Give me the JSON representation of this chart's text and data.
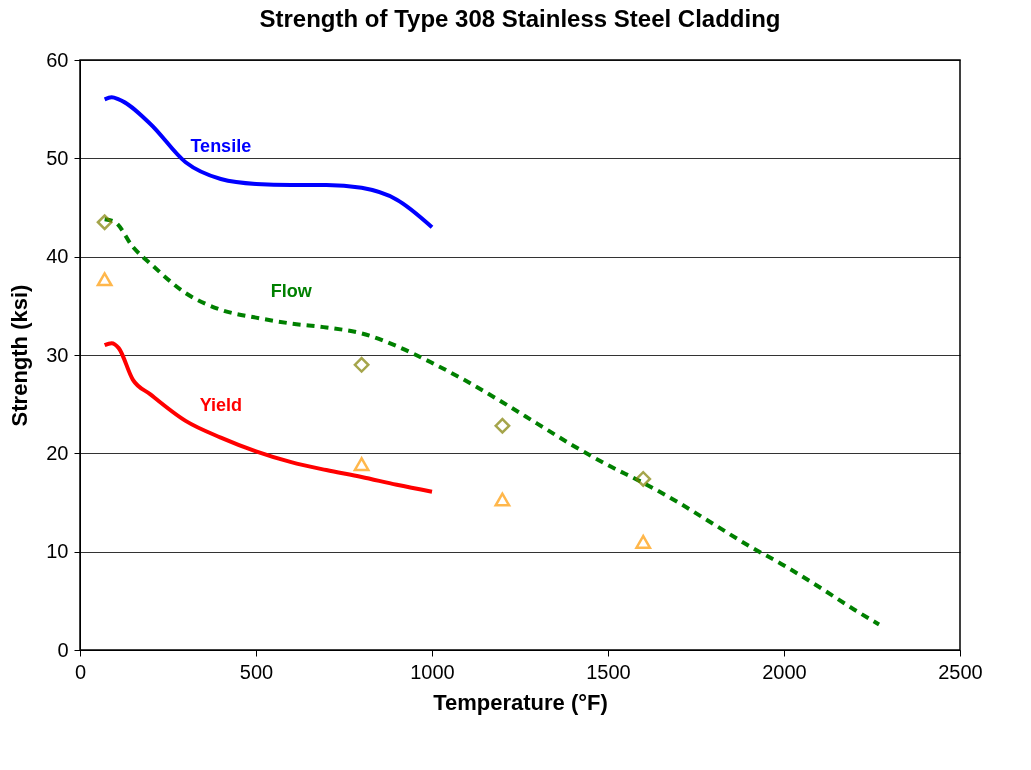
{
  "chart_data": {
    "type": "line",
    "title": "Strength of Type 308 Stainless Steel Cladding",
    "xlabel": "Temperature (°F)",
    "ylabel": "Strength (ksi)",
    "xlim": [
      0,
      2500
    ],
    "xticks": [
      0,
      500,
      1000,
      1500,
      2000,
      2500
    ],
    "ylim": [
      0,
      60
    ],
    "yticks": [
      0,
      10,
      20,
      30,
      40,
      50,
      60
    ],
    "grid": "y",
    "marker": "none",
    "series": [
      {
        "name": "Tensile",
        "color": "#0000ff",
        "line_style": "solid",
        "x": [
          70,
          90,
          110,
          200,
          300,
          400,
          500,
          600,
          700,
          800,
          900,
          1000
        ],
        "values": [
          56,
          56.2,
          56,
          53.5,
          49.6,
          47.9,
          47.4,
          47.3,
          47.3,
          47,
          45.8,
          43
        ]
      },
      {
        "name": "Flow",
        "color": "#008000",
        "line_style": "dashed",
        "x": [
          70,
          100,
          150,
          200,
          300,
          400,
          500,
          600,
          700,
          800,
          900,
          1000,
          1100,
          1200,
          1300,
          1400,
          1500,
          1600,
          1700,
          1800,
          1900,
          2000,
          2100,
          2200,
          2270
        ],
        "values": [
          43.8,
          43.5,
          41,
          39.3,
          36.3,
          34.6,
          33.8,
          33.2,
          32.8,
          32.2,
          30.9,
          29.2,
          27.3,
          25.2,
          23,
          20.8,
          18.8,
          17,
          15,
          12.8,
          10.6,
          8.6,
          6.4,
          4.1,
          2.6
        ]
      },
      {
        "name": "Yield",
        "color": "#ff0000",
        "line_style": "solid",
        "x": [
          70,
          90,
          110,
          150,
          200,
          300,
          400,
          500,
          600,
          700,
          800,
          900,
          1000
        ],
        "values": [
          31,
          31.2,
          30.7,
          27.5,
          26,
          23.3,
          21.6,
          20.2,
          19.1,
          18.3,
          17.6,
          16.8,
          16.1
        ]
      },
      {
        "type": "scatter",
        "marker": "diamond",
        "color": "#808000",
        "x": [
          70,
          800,
          1200,
          1600
        ],
        "values": [
          43.5,
          29,
          22.8,
          17.4
        ]
      },
      {
        "type": "scatter",
        "marker": "triangle",
        "color": "#ff9900",
        "x": [
          70,
          800,
          1200,
          1600
        ],
        "values": [
          37.7,
          18.9,
          15.3,
          11
        ]
      }
    ]
  }
}
